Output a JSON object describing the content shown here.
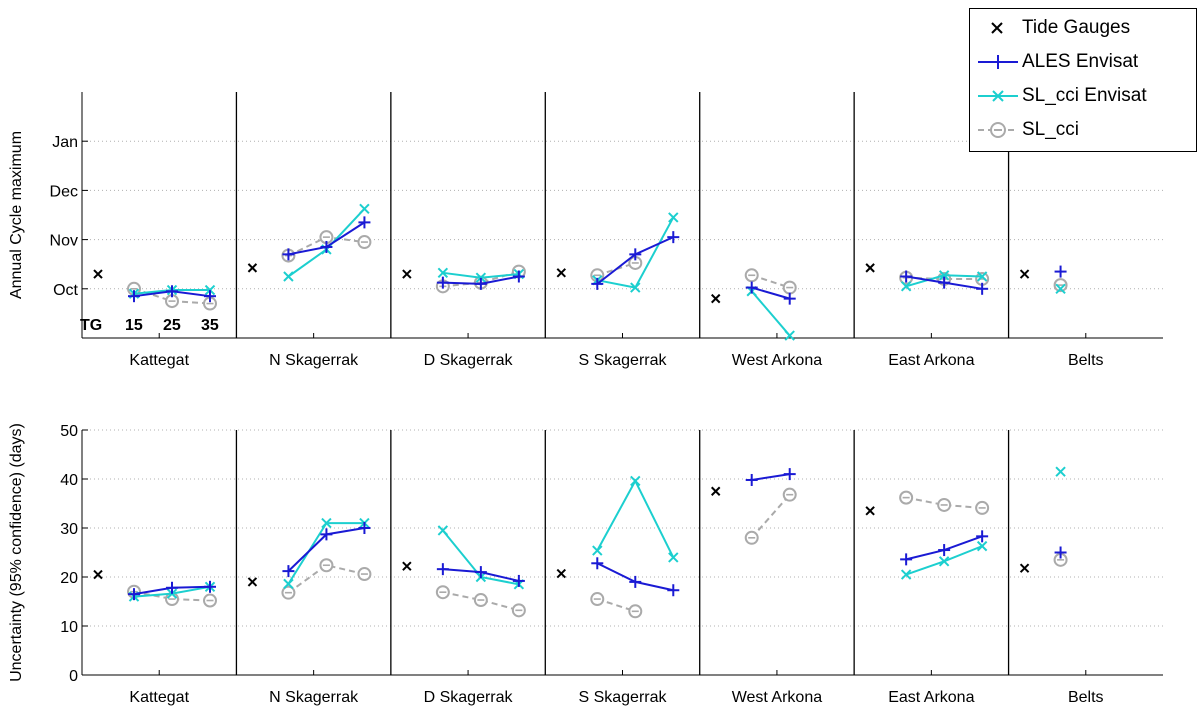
{
  "colors": {
    "tide_gauges": "#000000",
    "ales_envisat": "#1a1ad4",
    "sl_cci_envisat": "#1ccfcf",
    "sl_cci": "#aaaaaa",
    "grid": "#b0b0b0"
  },
  "legend": {
    "placement": "top-right",
    "items": [
      {
        "label": "Tide Gauges",
        "marker": "x",
        "color": "#000000",
        "line": "none"
      },
      {
        "label": "ALES Envisat",
        "marker": "+",
        "color": "#1a1ad4",
        "line": "solid"
      },
      {
        "label": "SL_cci Envisat",
        "marker": "x",
        "color": "#1ccfcf",
        "line": "solid"
      },
      {
        "label": "SL_cci",
        "marker": "o",
        "color": "#aaaaaa",
        "line": "dashed"
      }
    ]
  },
  "annotation": {
    "tg": "TG",
    "l15": "15",
    "l25": "25",
    "l35": "35"
  },
  "chart_data": [
    {
      "type": "line",
      "ylabel": "Annual Cycle maximum",
      "ylim": [
        0,
        100
      ],
      "yticks": [
        {
          "value": 20,
          "label": "Oct"
        },
        {
          "value": 40,
          "label": "Nov"
        },
        {
          "value": 60,
          "label": "Dec"
        },
        {
          "value": 80,
          "label": "Jan"
        }
      ],
      "grid": true,
      "regions": [
        {
          "name": "Kattegat",
          "tide": 26,
          "ales": [
            17,
            19,
            17
          ],
          "sl_envisat": [
            18,
            19.5,
            19.5
          ],
          "sl_cci": [
            20,
            15,
            14
          ]
        },
        {
          "name": "N Skagerrak",
          "tide": 28.5,
          "ales": [
            34,
            37,
            47
          ],
          "sl_envisat": [
            25,
            36,
            52.5
          ],
          "sl_cci": [
            33.5,
            41,
            39
          ]
        },
        {
          "name": "D Skagerrak",
          "tide": 26,
          "ales": [
            22.5,
            22,
            25
          ],
          "sl_envisat": [
            26.5,
            24.5,
            26
          ],
          "sl_cci": [
            21,
            22.5,
            27
          ]
        },
        {
          "name": "S Skagerrak",
          "tide": 26.5,
          "ales": [
            22,
            34,
            41
          ],
          "sl_envisat": [
            23.5,
            20.5,
            49
          ],
          "sl_cci": [
            25.5,
            30.5,
            null
          ]
        },
        {
          "name": "West Arkona",
          "tide": 16,
          "ales": [
            20.5,
            16,
            null
          ],
          "sl_envisat": [
            19,
            1,
            null
          ],
          "sl_cci": [
            25.5,
            20.5,
            null
          ]
        },
        {
          "name": "East Arkona",
          "tide": 28.5,
          "ales": [
            25,
            22.5,
            20
          ],
          "sl_envisat": [
            21,
            25.5,
            25
          ],
          "sl_cci": [
            24.5,
            24,
            24
          ]
        },
        {
          "name": "Belts",
          "tide": 26,
          "ales": [
            27,
            null,
            null
          ],
          "sl_envisat": [
            20,
            null,
            null
          ],
          "sl_cci": [
            21.5,
            null,
            null
          ]
        }
      ]
    },
    {
      "type": "line",
      "ylabel": "Uncertainty (95% confidence) (days)",
      "ylim": [
        0,
        50
      ],
      "yticks": [
        {
          "value": 0,
          "label": "0"
        },
        {
          "value": 10,
          "label": "10"
        },
        {
          "value": 20,
          "label": "20"
        },
        {
          "value": 30,
          "label": "30"
        },
        {
          "value": 40,
          "label": "40"
        },
        {
          "value": 50,
          "label": "50"
        }
      ],
      "grid": true,
      "regions": [
        {
          "name": "Kattegat",
          "tide": 20.5,
          "ales": [
            16.5,
            17.8,
            18
          ],
          "sl_envisat": [
            16,
            16.6,
            18
          ],
          "sl_cci": [
            17,
            15.5,
            15.2
          ]
        },
        {
          "name": "N Skagerrak",
          "tide": 19,
          "ales": [
            21.2,
            28.7,
            30
          ],
          "sl_envisat": [
            18.6,
            31,
            31
          ],
          "sl_cci": [
            16.8,
            22.4,
            20.6
          ]
        },
        {
          "name": "D Skagerrak",
          "tide": 22.2,
          "ales": [
            21.6,
            21,
            19.2
          ],
          "sl_envisat": [
            29.5,
            20,
            18.5
          ],
          "sl_cci": [
            16.9,
            15.3,
            13.2
          ]
        },
        {
          "name": "S Skagerrak",
          "tide": 20.7,
          "ales": [
            22.8,
            19,
            17.3
          ],
          "sl_envisat": [
            25.4,
            39.6,
            24
          ],
          "sl_cci": [
            15.5,
            13,
            null
          ]
        },
        {
          "name": "West Arkona",
          "tide": 37.5,
          "ales": [
            39.8,
            41,
            null
          ],
          "sl_envisat": [
            null,
            null,
            null
          ],
          "sl_cci": [
            28,
            36.8,
            null
          ]
        },
        {
          "name": "East Arkona",
          "tide": 33.5,
          "ales": [
            23.6,
            25.5,
            28.3
          ],
          "sl_envisat": [
            20.5,
            23.2,
            26.3
          ],
          "sl_cci": [
            36.2,
            34.7,
            34.1
          ]
        },
        {
          "name": "Belts",
          "tide": 21.8,
          "ales": [
            25,
            null,
            null
          ],
          "sl_envisat": [
            41.5,
            null,
            null
          ],
          "sl_cci": [
            23.5,
            null,
            null
          ]
        }
      ]
    }
  ]
}
